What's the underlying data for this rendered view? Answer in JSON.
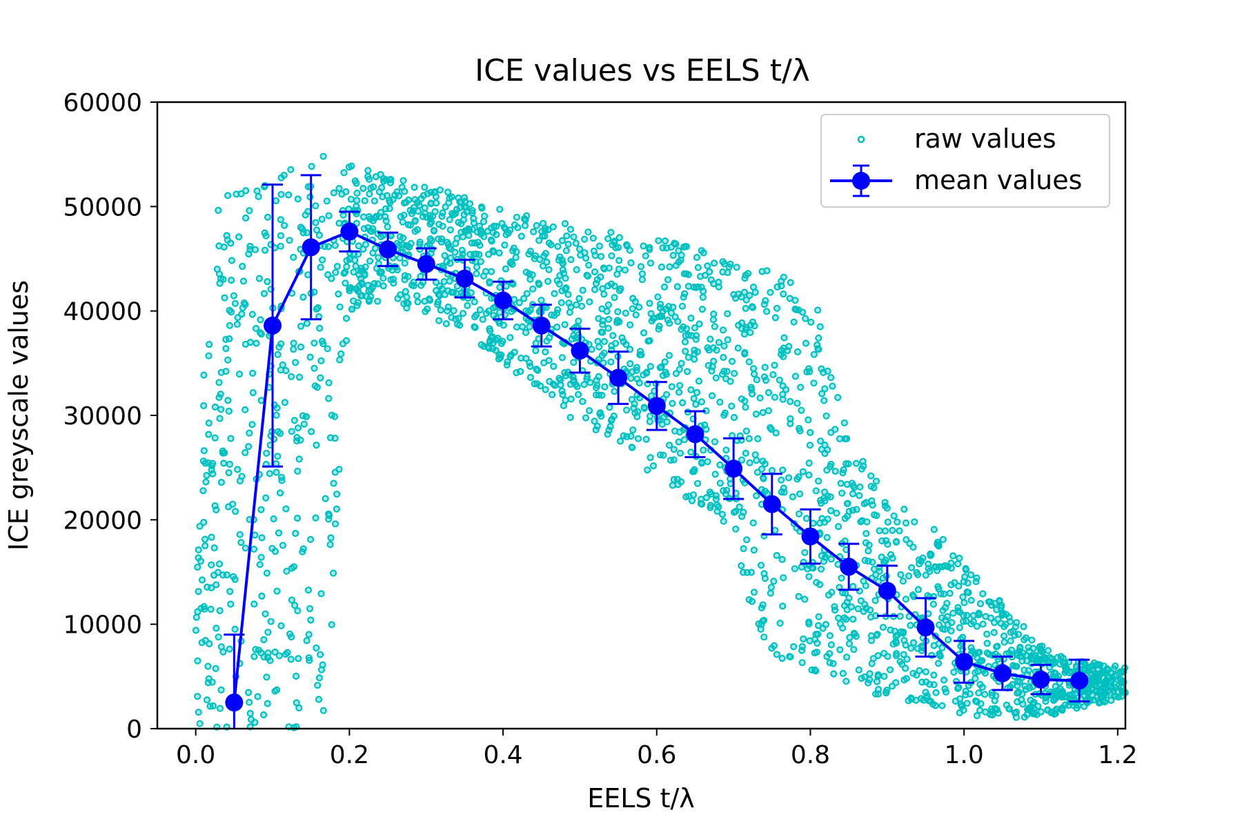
{
  "chart_data": {
    "type": "scatter",
    "title": "ICE values vs EELS t/λ",
    "xlabel": "EELS t/λ",
    "ylabel": "ICE greyscale values",
    "xlim": [
      -0.05,
      1.21
    ],
    "ylim": [
      0,
      60000
    ],
    "xticks": [
      "0.0",
      "0.2",
      "0.4",
      "0.6",
      "0.8",
      "1.0",
      "1.2"
    ],
    "yticks": [
      "0",
      "10000",
      "20000",
      "30000",
      "40000",
      "50000",
      "60000"
    ],
    "grid": false,
    "legend": {
      "position": "top-right",
      "entries": [
        "raw values",
        "mean values"
      ]
    },
    "colors": {
      "raw": "#00bfbf",
      "mean": "#0000ff"
    },
    "series": [
      {
        "name": "raw values",
        "kind": "scatter-cloud",
        "envelope": [
          {
            "x": 0.0,
            "lo": 0,
            "hi": 20000
          },
          {
            "x": 0.02,
            "lo": 0,
            "hi": 50000
          },
          {
            "x": 0.06,
            "lo": 0,
            "hi": 52000
          },
          {
            "x": 0.1,
            "lo": 0,
            "hi": 54000
          },
          {
            "x": 0.14,
            "lo": 0,
            "hi": 55000
          },
          {
            "x": 0.17,
            "lo": 0,
            "hi": 55000
          },
          {
            "x": 0.2,
            "lo": 40000,
            "hi": 54000
          },
          {
            "x": 0.25,
            "lo": 41000,
            "hi": 53000
          },
          {
            "x": 0.3,
            "lo": 39500,
            "hi": 52000
          },
          {
            "x": 0.35,
            "lo": 38000,
            "hi": 51000
          },
          {
            "x": 0.4,
            "lo": 35000,
            "hi": 50000
          },
          {
            "x": 0.45,
            "lo": 32000,
            "hi": 49000
          },
          {
            "x": 0.5,
            "lo": 29000,
            "hi": 48000
          },
          {
            "x": 0.55,
            "lo": 27000,
            "hi": 47500
          },
          {
            "x": 0.6,
            "lo": 24000,
            "hi": 47000
          },
          {
            "x": 0.65,
            "lo": 21500,
            "hi": 46000
          },
          {
            "x": 0.7,
            "lo": 19000,
            "hi": 45000
          },
          {
            "x": 0.72,
            "lo": 12000,
            "hi": 44500
          },
          {
            "x": 0.75,
            "lo": 7000,
            "hi": 44000
          },
          {
            "x": 0.8,
            "lo": 5500,
            "hi": 42000
          },
          {
            "x": 0.82,
            "lo": 5000,
            "hi": 38000
          },
          {
            "x": 0.85,
            "lo": 4000,
            "hi": 28000
          },
          {
            "x": 0.9,
            "lo": 3000,
            "hi": 22000
          },
          {
            "x": 0.95,
            "lo": 2000,
            "hi": 20000
          },
          {
            "x": 1.0,
            "lo": 1000,
            "hi": 16000
          },
          {
            "x": 1.05,
            "lo": 1000,
            "hi": 12000
          },
          {
            "x": 1.1,
            "lo": 1000,
            "hi": 8000
          },
          {
            "x": 1.15,
            "lo": 2000,
            "hi": 6500
          },
          {
            "x": 1.21,
            "lo": 3000,
            "hi": 6000
          }
        ]
      },
      {
        "name": "mean values",
        "kind": "errorbar-line",
        "x": [
          0.05,
          0.1,
          0.15,
          0.2,
          0.25,
          0.3,
          0.35,
          0.4,
          0.45,
          0.5,
          0.55,
          0.6,
          0.65,
          0.7,
          0.75,
          0.8,
          0.85,
          0.9,
          0.95,
          1.0,
          1.05,
          1.1,
          1.15
        ],
        "y": [
          2500,
          38600,
          46100,
          47600,
          45900,
          44500,
          43100,
          41000,
          38600,
          36200,
          33600,
          30900,
          28200,
          24900,
          21500,
          18400,
          15500,
          13200,
          9700,
          6400,
          5300,
          4700,
          4600
        ],
        "err": [
          6500,
          13500,
          6900,
          1900,
          1600,
          1500,
          1800,
          1800,
          2000,
          2100,
          2500,
          2300,
          2200,
          2900,
          2900,
          2600,
          2200,
          2400,
          2800,
          2000,
          1600,
          1400,
          2000
        ]
      }
    ]
  }
}
